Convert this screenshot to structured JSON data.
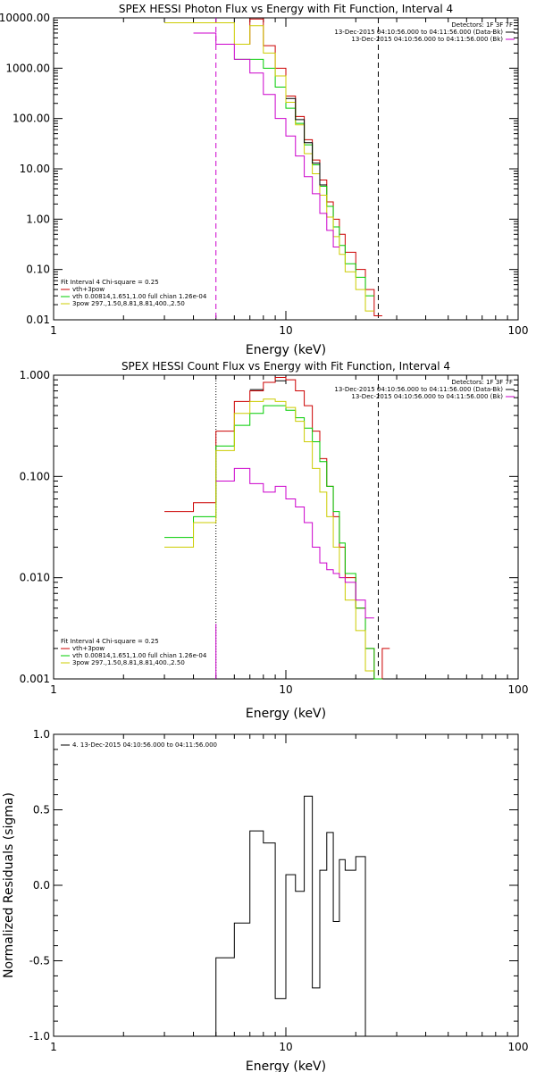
{
  "chart_data": [
    {
      "type": "line",
      "step": true,
      "title": "SPEX HESSI Photon Flux vs Energy with Fit Function, Interval 4",
      "xlabel": "Energy (keV)",
      "ylabel": "",
      "xscale": "log",
      "yscale": "log",
      "xlim": [
        1,
        100
      ],
      "ylim": [
        0.01,
        10000
      ],
      "x_tick_labels": [
        "1",
        "10",
        "100"
      ],
      "y_tick_labels": [
        "0.01",
        "0.10",
        "1.00",
        "10.00",
        "100.00",
        "1000.00",
        "10000.00"
      ],
      "x_edges": [
        3,
        4,
        5,
        6,
        7,
        8,
        9,
        10,
        11,
        12,
        13,
        14,
        15,
        16,
        17,
        18,
        20,
        22,
        24,
        26
      ],
      "series": [
        {
          "name": "vth+3pow",
          "color": "#cc0000",
          "values": [
            null,
            null,
            null,
            3000,
            9500,
            2800,
            1000,
            280,
            110,
            38,
            15,
            6.0,
            2.2,
            1.0,
            0.5,
            0.22,
            0.1,
            0.04,
            0.012
          ]
        },
        {
          "name": "vth 0.00814,1.651,1.00  full chian 1.26e-04",
          "color": "#00cc00",
          "values": [
            null,
            null,
            null,
            1500,
            1500,
            1000,
            420,
            160,
            80,
            30,
            12,
            4.5,
            1.8,
            0.7,
            0.3,
            0.13,
            0.07,
            0.03
          ]
        },
        {
          "name": "3pow 297.,1.50,8.81,8.81,400.,2.50",
          "color": "#cccc00",
          "values": [
            8000,
            8000,
            8000,
            3000,
            7000,
            2000,
            700,
            210,
            75,
            20,
            8,
            3,
            1.1,
            0.45,
            0.2,
            0.09,
            0.04,
            0.015
          ]
        },
        {
          "name": "",
          "color": "#cc00cc",
          "values": [
            null,
            5000,
            3000,
            1500,
            800,
            300,
            100,
            45,
            18,
            7,
            3.2,
            1.3,
            0.6,
            0.28
          ]
        },
        {
          "name": "",
          "color": "#000000",
          "values": [
            null,
            null,
            null,
            null,
            10000,
            null,
            null,
            250,
            95,
            33,
            13,
            4.8
          ]
        }
      ],
      "vlines": [
        {
          "x": 5,
          "style": "dashed",
          "color": "#cc00cc"
        },
        {
          "x": 25,
          "style": "dashed",
          "color": "#000000"
        }
      ],
      "legend_top_right": [
        {
          "text": "Detectors: 1F 3F 7F",
          "color": null
        },
        {
          "text": "13-Dec-2015 04:10:56.000 to 04:11:56.000 (Data-Bk)",
          "color": "#000000"
        },
        {
          "text": "13-Dec-2015 04:10:56.000 to 04:11:56.000 (Bk)",
          "color": "#cc00cc"
        }
      ],
      "legend_bottom_left": [
        {
          "text": "Fit Interval 4   Chi-square = 0.25",
          "color": null
        },
        {
          "text": "vth+3pow",
          "color": "#cc0000"
        },
        {
          "text": "vth 0.00814,1.651,1.00  full chian 1.26e-04",
          "color": "#00cc00"
        },
        {
          "text": "3pow 297.,1.50,8.81,8.81,400.,2.50",
          "color": "#cccc00"
        }
      ]
    },
    {
      "type": "line",
      "step": true,
      "title": "SPEX HESSI Count Flux vs Energy with Fit Function, Interval 4",
      "xlabel": "Energy (keV)",
      "ylabel": "",
      "xscale": "log",
      "yscale": "log",
      "xlim": [
        1,
        100
      ],
      "ylim": [
        0.001,
        1.0
      ],
      "x_tick_labels": [
        "1",
        "10",
        "100"
      ],
      "y_tick_labels": [
        "0.001",
        "0.010",
        "0.100",
        "1.000"
      ],
      "x_edges": [
        3,
        4,
        5,
        6,
        7,
        8,
        9,
        10,
        11,
        12,
        13,
        14,
        15,
        16,
        17,
        18,
        20,
        22,
        24,
        26,
        28
      ],
      "series": [
        {
          "name": "vth+3pow",
          "color": "#cc0000",
          "values": [
            0.045,
            0.055,
            0.28,
            0.55,
            0.7,
            0.85,
            0.95,
            0.9,
            0.7,
            0.5,
            0.28,
            0.15,
            0.08,
            0.04,
            0.02,
            0.01,
            0.005,
            0.002,
            0.001,
            0.002
          ]
        },
        {
          "name": "vth 0.00814,1.651,1.00  full chian 1.26e-04",
          "color": "#00cc00",
          "values": [
            0.025,
            0.04,
            0.2,
            0.32,
            0.42,
            0.5,
            0.5,
            0.45,
            0.38,
            0.3,
            0.22,
            0.14,
            0.08,
            0.045,
            0.022,
            0.011,
            0.005,
            0.002,
            0.001
          ]
        },
        {
          "name": "3pow 297.,1.50,8.81,8.81,400.,2.50",
          "color": "#cccc00",
          "values": [
            0.02,
            0.035,
            0.18,
            0.42,
            0.55,
            0.58,
            0.55,
            0.48,
            0.35,
            0.22,
            0.12,
            0.07,
            0.04,
            0.02,
            0.01,
            0.006,
            0.003,
            0.0012
          ]
        },
        {
          "name": "",
          "color": "#cc00cc",
          "values": [
            null,
            null,
            0.09,
            0.12,
            0.085,
            0.07,
            0.08,
            0.06,
            0.05,
            0.035,
            0.02,
            0.014,
            0.012,
            0.011,
            0.01,
            0.009,
            0.006,
            0.004
          ]
        },
        {
          "name": "",
          "color": "#000000",
          "values": [
            null,
            null,
            null,
            null,
            0.72,
            null,
            0.88
          ]
        }
      ],
      "vlines": [
        {
          "x": 5,
          "style": "dotted",
          "color": "#000000"
        },
        {
          "x": 5,
          "style": "solid",
          "color": "#cc00cc",
          "from_y": 0.001,
          "to_y": 0.0035
        },
        {
          "x": 25,
          "style": "dashed",
          "color": "#000000"
        }
      ],
      "legend_top_right": [
        {
          "text": "Detectors: 1F 3F 7F",
          "color": null
        },
        {
          "text": "13-Dec-2015 04:10:56.000 to 04:11:56.000 (Data-Bk)",
          "color": "#000000"
        },
        {
          "text": "13-Dec-2015 04:10:56.000 to 04:11:56.000 (Bk)",
          "color": "#cc00cc"
        }
      ],
      "legend_bottom_left": [
        {
          "text": "Fit Interval 4   Chi-square = 0.25",
          "color": null
        },
        {
          "text": "vth+3pow",
          "color": "#cc0000"
        },
        {
          "text": "vth 0.00814,1.651,1.00  full chian 1.26e-04",
          "color": "#00cc00"
        },
        {
          "text": "3pow 297.,1.50,8.81,8.81,400.,2.50",
          "color": "#cccc00"
        }
      ]
    },
    {
      "type": "line",
      "step": true,
      "title": "",
      "xlabel": "Energy (keV)",
      "ylabel": "Normalized Residuals (sigma)",
      "xscale": "log",
      "yscale": "linear",
      "xlim": [
        1,
        100
      ],
      "ylim": [
        -1.0,
        1.0
      ],
      "x_tick_labels": [
        "1",
        "10",
        "100"
      ],
      "y_ticks": [
        -1.0,
        -0.5,
        0.0,
        0.5,
        1.0
      ],
      "y_tick_labels": [
        "-1.0",
        "-0.5",
        "0.0",
        "0.5",
        "1.0"
      ],
      "x_edges": [
        5,
        6,
        7,
        8,
        9,
        10,
        11,
        12,
        13,
        14,
        15,
        16,
        17,
        18,
        20,
        22,
        24,
        26
      ],
      "series": [
        {
          "name": "4. 13-Dec-2015 04:10:56.000 to 04:11:56.000",
          "color": "#000000",
          "values": [
            -0.48,
            -0.25,
            0.36,
            0.28,
            -0.75,
            0.07,
            -0.04,
            0.59,
            -0.68,
            0.1,
            0.35,
            -0.24,
            0.17,
            0.1,
            0.19
          ],
          "drop_to_bottom": true
        }
      ],
      "legend_top_left": [
        {
          "text": "4. 13-Dec-2015 04:10:56.000 to 04:11:56.000",
          "color": "#000000"
        }
      ]
    }
  ]
}
